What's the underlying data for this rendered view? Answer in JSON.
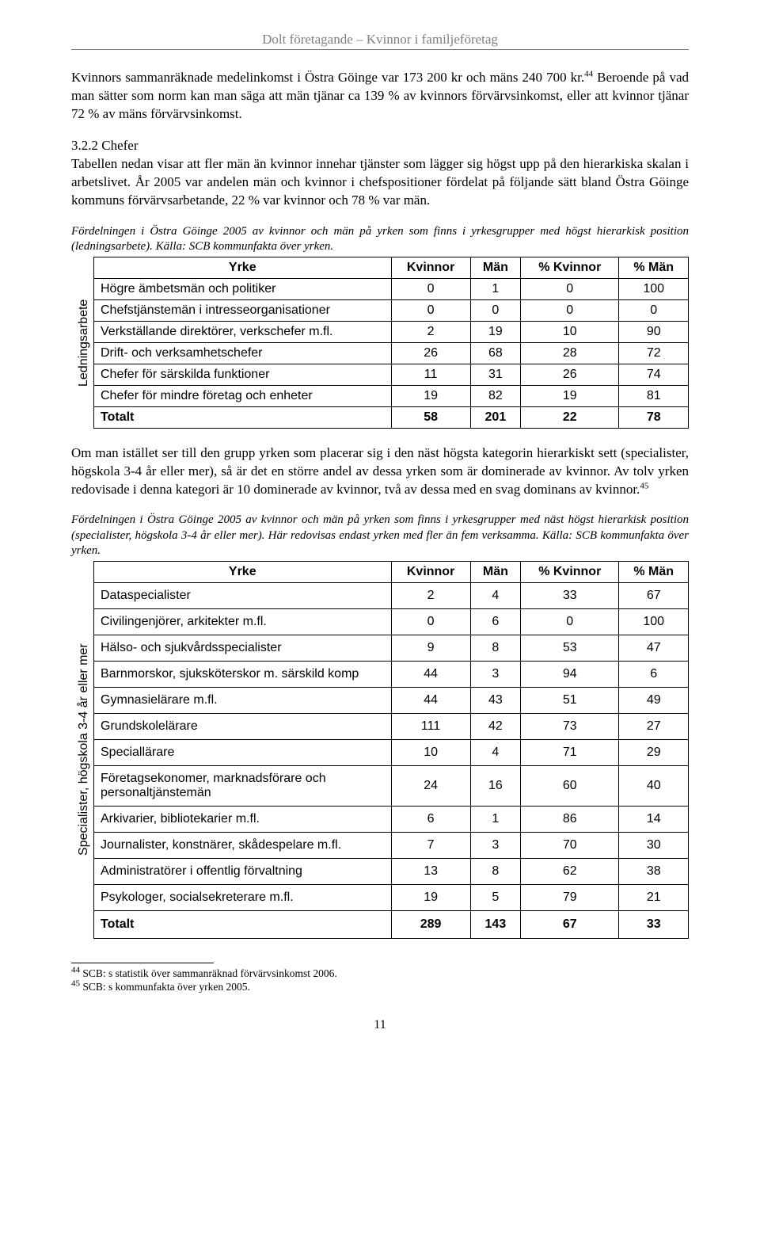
{
  "header": {
    "running_title": "Dolt företagande – Kvinnor i familjeföretag"
  },
  "para1": "Kvinnors sammanräknade medelinkomst i Östra Göinge var 173 200 kr och mäns 240 700 kr.",
  "sup1": "44",
  "para1b": " Beroende på vad man sätter som norm kan man säga att män tjänar ca 139 % av kvinnors förvärvsinkomst, eller att kvinnor tjänar 72 % av mäns förvärvsinkomst.",
  "section_num": "3.2.2 Chefer",
  "para2": "Tabellen nedan visar att fler män än kvinnor innehar tjänster som lägger sig högst upp på den hierarkiska skalan i arbetslivet. År 2005 var andelen män och kvinnor i chefspositioner fördelat på följande sätt bland Östra Göinge kommuns förvärvsarbetande, 22 % var kvinnor och 78 % var män.",
  "caption1": "Fördelningen i Östra Göinge 2005 av kvinnor och män på yrken som finns i yrkesgrupper med högst hierarkisk position (ledningsarbete). Källa: SCB kommunfakta över yrken.",
  "table_headers": {
    "c1": "Yrke",
    "c2": "Kvinnor",
    "c3": "Män",
    "c4": "% Kvinnor",
    "c5": "% Män"
  },
  "table1": {
    "side_label": "Ledningsarbete",
    "rows": [
      {
        "y": "Högre ämbetsmän och politiker",
        "k": "0",
        "m": "1",
        "pk": "0",
        "pm": "100"
      },
      {
        "y": "Chefstjänstemän i intresseorganisationer",
        "k": "0",
        "m": "0",
        "pk": "0",
        "pm": "0"
      },
      {
        "y": "Verkställande direktörer, verkschefer m.fl.",
        "k": "2",
        "m": "19",
        "pk": "10",
        "pm": "90"
      },
      {
        "y": "Drift- och verksamhetschefer",
        "k": "26",
        "m": "68",
        "pk": "28",
        "pm": "72"
      },
      {
        "y": "Chefer för särskilda funktioner",
        "k": "11",
        "m": "31",
        "pk": "26",
        "pm": "74"
      },
      {
        "y": "Chefer för mindre företag och enheter",
        "k": "19",
        "m": "82",
        "pk": "19",
        "pm": "81"
      }
    ],
    "total": {
      "y": "Totalt",
      "k": "58",
      "m": "201",
      "pk": "22",
      "pm": "78"
    }
  },
  "para3a": "Om man istället ser till den grupp yrken som placerar sig i den näst högsta kategorin hierarkiskt sett (specialister, högskola 3-4 år eller mer), så är det en större andel av dessa yrken som är dominerade av kvinnor. Av tolv yrken redovisade i denna kategori är 10 dominerade av kvinnor, två av dessa med en svag dominans av kvinnor.",
  "sup2": "45",
  "caption2": "Fördelningen i Östra Göinge 2005 av kvinnor och män på yrken som finns i yrkesgrupper med näst högst hierarkisk position (specialister, högskola 3-4 år eller mer). Här redovisas endast yrken med fler än fem verksamma. Källa: SCB kommunfakta över yrken.",
  "table2": {
    "side_label": "Specialister, högskola 3-4 år eller mer",
    "rows": [
      {
        "y": "Dataspecialister",
        "k": "2",
        "m": "4",
        "pk": "33",
        "pm": "67"
      },
      {
        "y": "Civilingenjörer, arkitekter m.fl.",
        "k": "0",
        "m": "6",
        "pk": "0",
        "pm": "100"
      },
      {
        "y": "Hälso- och sjukvårdsspecialister",
        "k": "9",
        "m": "8",
        "pk": "53",
        "pm": "47"
      },
      {
        "y": "Barnmorskor, sjuksköterskor m. särskild komp",
        "k": "44",
        "m": "3",
        "pk": "94",
        "pm": "6"
      },
      {
        "y": "Gymnasielärare m.fl.",
        "k": "44",
        "m": "43",
        "pk": "51",
        "pm": "49"
      },
      {
        "y": "Grundskolelärare",
        "k": "111",
        "m": "42",
        "pk": "73",
        "pm": "27"
      },
      {
        "y": "Speciallärare",
        "k": "10",
        "m": "4",
        "pk": "71",
        "pm": "29"
      },
      {
        "y": "Företagsekonomer, marknadsförare och personaltjänstemän",
        "k": "24",
        "m": "16",
        "pk": "60",
        "pm": "40"
      },
      {
        "y": "Arkivarier, bibliotekarier m.fl.",
        "k": "6",
        "m": "1",
        "pk": "86",
        "pm": "14"
      },
      {
        "y": "Journalister, konstnärer, skådespelare m.fl.",
        "k": "7",
        "m": "3",
        "pk": "70",
        "pm": "30"
      },
      {
        "y": "Administratörer i offentlig förvaltning",
        "k": "13",
        "m": "8",
        "pk": "62",
        "pm": "38"
      },
      {
        "y": "Psykologer, socialsekreterare m.fl.",
        "k": "19",
        "m": "5",
        "pk": "79",
        "pm": "21"
      }
    ],
    "total": {
      "y": "Totalt",
      "k": "289",
      "m": "143",
      "pk": "67",
      "pm": "33"
    }
  },
  "footnotes": {
    "f44": " SCB: s statistik över sammanräknad förvärvsinkomst 2006.",
    "f45": " SCB: s kommunfakta över yrken 2005."
  },
  "page_number": "11"
}
